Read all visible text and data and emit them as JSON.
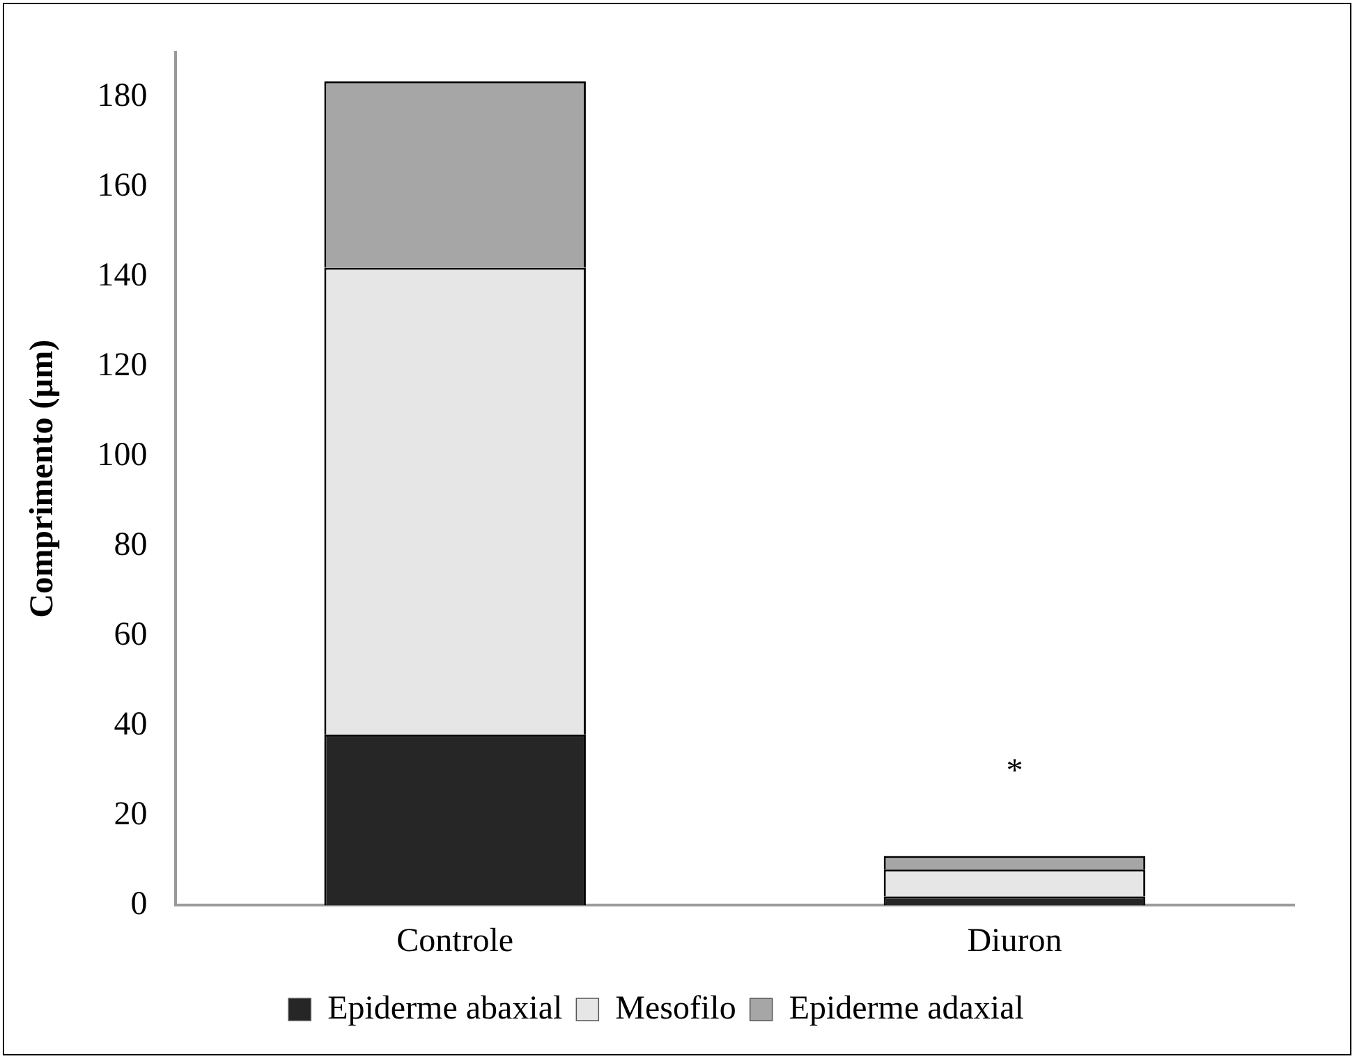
{
  "chart_data": {
    "type": "bar",
    "stacked": true,
    "ylabel": "Comprimento (µm)",
    "categories": [
      "Controle",
      "Diuron"
    ],
    "series": [
      {
        "name": "Epiderme abaxial",
        "color": "#262626",
        "values": [
          38,
          2
        ]
      },
      {
        "name": "Mesofilo",
        "color": "#e6e6e6",
        "values": [
          104,
          6
        ]
      },
      {
        "name": "Epiderme adaxial",
        "color": "#a6a6a6",
        "values": [
          41.5,
          3
        ]
      }
    ],
    "ylim": [
      0,
      190
    ],
    "yticks": [
      0,
      20,
      40,
      60,
      80,
      100,
      120,
      140,
      160,
      180
    ],
    "grid": false,
    "legend": "bottom",
    "annotations": [
      {
        "text": "*",
        "x": "Diuron",
        "y": 11
      }
    ]
  }
}
